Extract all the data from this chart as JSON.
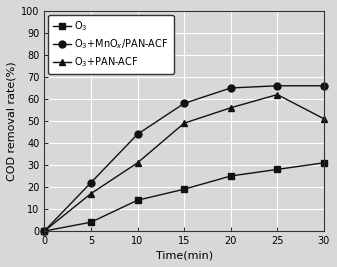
{
  "xlabel": "Time（min）",
  "ylabel": "COD removal rate（%）",
  "xlim": [
    0,
    30
  ],
  "ylim": [
    0,
    100
  ],
  "xticks": [
    0,
    5,
    10,
    15,
    20,
    25,
    30
  ],
  "yticks": [
    0,
    10,
    20,
    30,
    40,
    50,
    60,
    70,
    80,
    90,
    100
  ],
  "series": [
    {
      "x": [
        0,
        5,
        10,
        15,
        20,
        25,
        30
      ],
      "y": [
        0,
        4,
        14,
        19,
        25,
        28,
        31
      ],
      "marker": "s",
      "color": "#111111",
      "linestyle": "-"
    },
    {
      "x": [
        0,
        5,
        10,
        15,
        20,
        25,
        30
      ],
      "y": [
        0,
        22,
        44,
        58,
        65,
        66,
        66
      ],
      "marker": "o",
      "color": "#111111",
      "linestyle": "-"
    },
    {
      "x": [
        0,
        5,
        10,
        15,
        20,
        25,
        30
      ],
      "y": [
        0,
        17,
        31,
        49,
        56,
        62,
        51
      ],
      "marker": "^",
      "color": "#111111",
      "linestyle": "-"
    }
  ],
  "legend_labels": [
    "O$_3$",
    "O$_3$+MnO$_x$/PAN-ACF",
    "O$_3$+PAN-ACF"
  ],
  "background_color": "#d8d8d8",
  "plot_bg_color": "#d8d8d8",
  "grid_color": "#ffffff",
  "tick_fontsize": 7,
  "label_fontsize": 8,
  "legend_fontsize": 7
}
